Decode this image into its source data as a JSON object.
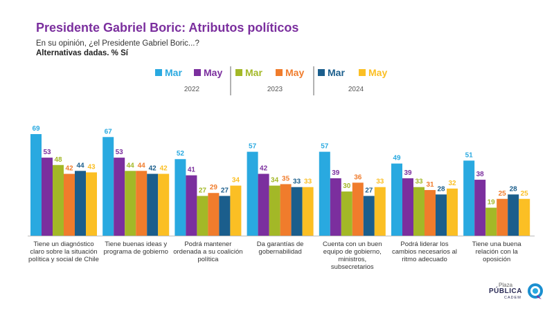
{
  "header": {
    "title": "Presidente Gabriel Boric: Atributos políticos",
    "subtitle": "En su opinión, ¿el Presidente Gabriel Boric...?",
    "note": "Alternativas dadas. % Sí"
  },
  "logo": {
    "line1": "Plaza",
    "line2": "PÚBLICA",
    "line3": "CADEM"
  },
  "colors": {
    "background": "#ffffff",
    "title": "#7b2f9e",
    "axis": "#bbbbbb"
  },
  "chart_data": {
    "type": "bar",
    "groups": [
      {
        "year": "2022",
        "series": [
          0,
          1
        ]
      },
      {
        "year": "2023",
        "series": [
          2,
          3
        ]
      },
      {
        "year": "2024",
        "series": [
          4,
          5
        ]
      }
    ],
    "series": [
      {
        "name": "Mar",
        "year": "2022",
        "color": "#29a9e0",
        "values": [
          69,
          67,
          52,
          57,
          57,
          49,
          51
        ]
      },
      {
        "name": "May",
        "year": "2022",
        "color": "#7b2f9e",
        "values": [
          53,
          53,
          41,
          42,
          39,
          39,
          38
        ]
      },
      {
        "name": "Mar",
        "year": "2023",
        "color": "#a3b827",
        "values": [
          48,
          44,
          27,
          34,
          30,
          33,
          19
        ]
      },
      {
        "name": "May",
        "year": "2023",
        "color": "#f07c2c",
        "values": [
          42,
          44,
          29,
          35,
          36,
          31,
          25
        ]
      },
      {
        "name": "Mar",
        "year": "2024",
        "color": "#1b5e8c",
        "values": [
          44,
          42,
          27,
          33,
          27,
          28,
          28
        ]
      },
      {
        "name": "May",
        "year": "2024",
        "color": "#fbbf24",
        "values": [
          43,
          42,
          34,
          33,
          33,
          32,
          25
        ]
      }
    ],
    "categories": [
      [
        "Tiene un diagnóstico",
        "claro sobre la situación",
        "política y social de Chile"
      ],
      [
        "Tiene buenas ideas y",
        "programa de gobierno"
      ],
      [
        "Podrá mantener",
        "ordenada a su coalición",
        "política"
      ],
      [
        "Da garantías de",
        "gobernabilidad"
      ],
      [
        "Cuenta con un buen",
        "equipo de gobierno,",
        "ministros,",
        "subsecretarios"
      ],
      [
        "Podrá liderar los",
        "cambios necesarios al",
        "ritmo adecuado"
      ],
      [
        "Tiene una buena",
        "relación con la",
        "oposición"
      ]
    ],
    "ylim": [
      0,
      100
    ],
    "data_labels": true,
    "grid": false,
    "legend_position": "top"
  }
}
